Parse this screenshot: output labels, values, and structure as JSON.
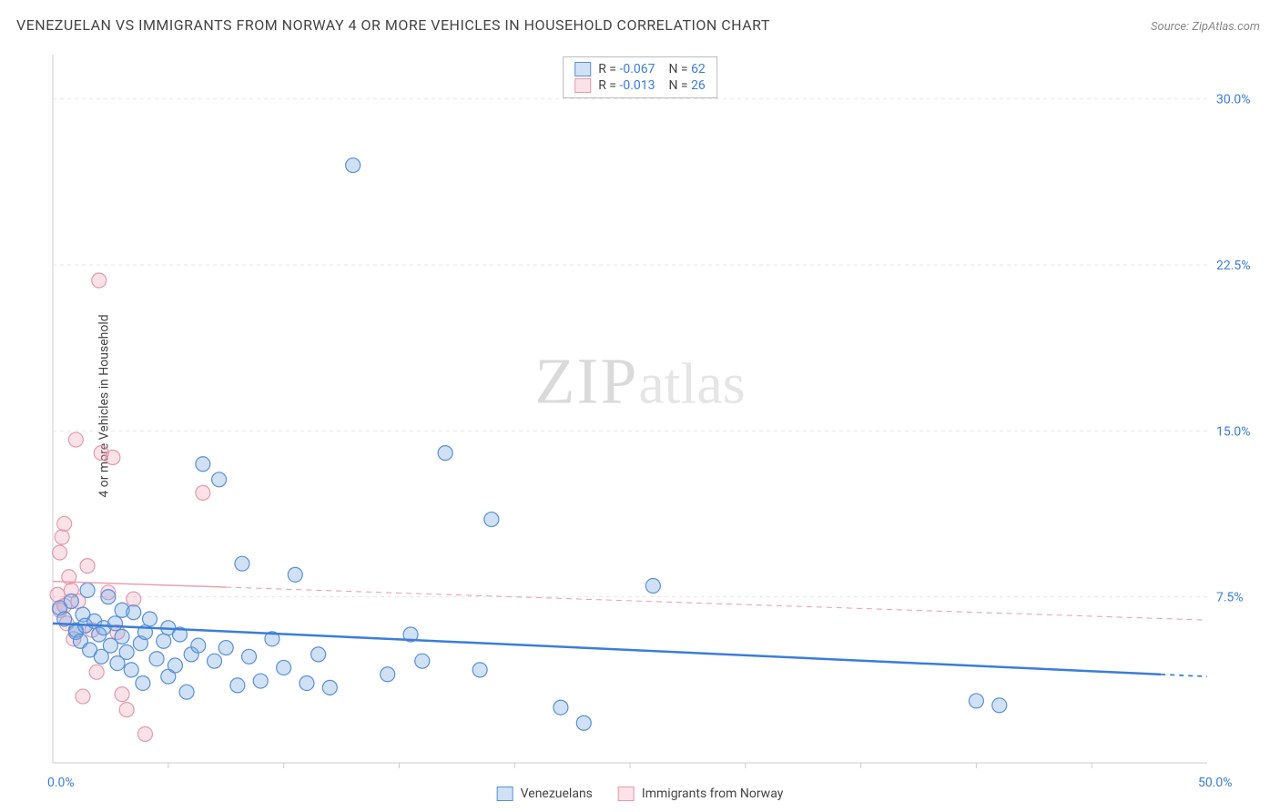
{
  "title": "VENEZUELAN VS IMMIGRANTS FROM NORWAY 4 OR MORE VEHICLES IN HOUSEHOLD CORRELATION CHART",
  "source": "Source: ZipAtlas.com",
  "ylabel": "4 or more Vehicles in Household",
  "watermark": {
    "a": "ZIP",
    "b": "atlas"
  },
  "chart": {
    "type": "scatter",
    "xlim": [
      0,
      50
    ],
    "ylim": [
      0,
      32
    ],
    "x_axis_min_label": "0.0%",
    "x_axis_max_label": "50.0%",
    "y_ticks": [
      7.5,
      15.0,
      22.5,
      30.0
    ],
    "y_tick_labels": [
      "7.5%",
      "15.0%",
      "22.5%",
      "30.0%"
    ],
    "x_ticks": [
      5,
      10,
      15,
      20,
      25,
      30,
      35,
      40,
      45
    ],
    "background": "#ffffff",
    "grid_color": "#e6e6e6",
    "axis_color": "#cccccc",
    "tick_label_color": "#3b7dd8",
    "series": {
      "venezuelans": {
        "label": "Venezuelans",
        "fill": "rgba(120,170,230,0.35)",
        "stroke": "#5a8fd6",
        "marker_radius": 8,
        "trend": {
          "slope": -0.048,
          "intercept": 6.3,
          "solid_until_x": 48,
          "color": "#3b7dd8",
          "width": 2.5
        },
        "stats": {
          "R": "-0.067",
          "N": "62"
        },
        "points": [
          [
            0.3,
            7.0
          ],
          [
            0.5,
            6.5
          ],
          [
            0.8,
            7.3
          ],
          [
            1.0,
            6.0
          ],
          [
            1.0,
            5.9
          ],
          [
            1.2,
            5.5
          ],
          [
            1.3,
            6.7
          ],
          [
            1.4,
            6.2
          ],
          [
            1.5,
            7.8
          ],
          [
            1.6,
            5.1
          ],
          [
            1.8,
            6.4
          ],
          [
            2.0,
            5.8
          ],
          [
            2.1,
            4.8
          ],
          [
            2.2,
            6.1
          ],
          [
            2.4,
            7.5
          ],
          [
            2.5,
            5.3
          ],
          [
            2.7,
            6.3
          ],
          [
            2.8,
            4.5
          ],
          [
            3.0,
            5.7
          ],
          [
            3.0,
            6.9
          ],
          [
            3.2,
            5.0
          ],
          [
            3.4,
            4.2
          ],
          [
            3.5,
            6.8
          ],
          [
            3.8,
            5.4
          ],
          [
            3.9,
            3.6
          ],
          [
            4.0,
            5.9
          ],
          [
            4.2,
            6.5
          ],
          [
            4.5,
            4.7
          ],
          [
            4.8,
            5.5
          ],
          [
            5.0,
            3.9
          ],
          [
            5.0,
            6.1
          ],
          [
            5.3,
            4.4
          ],
          [
            5.5,
            5.8
          ],
          [
            5.8,
            3.2
          ],
          [
            6.0,
            4.9
          ],
          [
            6.3,
            5.3
          ],
          [
            6.5,
            13.5
          ],
          [
            7.0,
            4.6
          ],
          [
            7.2,
            12.8
          ],
          [
            7.5,
            5.2
          ],
          [
            8.0,
            3.5
          ],
          [
            8.2,
            9.0
          ],
          [
            8.5,
            4.8
          ],
          [
            9.0,
            3.7
          ],
          [
            9.5,
            5.6
          ],
          [
            10.0,
            4.3
          ],
          [
            10.5,
            8.5
          ],
          [
            11.0,
            3.6
          ],
          [
            11.5,
            4.9
          ],
          [
            12.0,
            3.4
          ],
          [
            13.0,
            27.0
          ],
          [
            14.5,
            4.0
          ],
          [
            15.5,
            5.8
          ],
          [
            16.0,
            4.6
          ],
          [
            17.0,
            14.0
          ],
          [
            18.5,
            4.2
          ],
          [
            19.0,
            11.0
          ],
          [
            22.0,
            2.5
          ],
          [
            23.0,
            1.8
          ],
          [
            40.0,
            2.8
          ],
          [
            41.0,
            2.6
          ],
          [
            26.0,
            8.0
          ]
        ]
      },
      "norway": {
        "label": "Immigrants from Norway",
        "fill": "rgba(240,160,180,0.30)",
        "stroke": "#e49aaf",
        "marker_radius": 8,
        "trend": {
          "slope": -0.035,
          "intercept": 8.2,
          "solid_until_x": 7.5,
          "dash": "6 5",
          "color": "#e8a0b0",
          "width": 1.5
        },
        "stats": {
          "R": "-0.013",
          "N": "26"
        },
        "points": [
          [
            0.2,
            7.6
          ],
          [
            0.3,
            6.9
          ],
          [
            0.3,
            9.5
          ],
          [
            0.4,
            10.2
          ],
          [
            0.5,
            10.8
          ],
          [
            0.5,
            7.1
          ],
          [
            0.6,
            6.3
          ],
          [
            0.7,
            8.4
          ],
          [
            0.8,
            7.8
          ],
          [
            0.9,
            5.6
          ],
          [
            1.0,
            14.6
          ],
          [
            1.1,
            7.3
          ],
          [
            1.3,
            3.0
          ],
          [
            1.5,
            8.9
          ],
          [
            1.7,
            6.0
          ],
          [
            1.9,
            4.1
          ],
          [
            2.0,
            21.8
          ],
          [
            2.1,
            14.0
          ],
          [
            2.4,
            7.7
          ],
          [
            2.6,
            13.8
          ],
          [
            2.8,
            5.9
          ],
          [
            3.0,
            3.1
          ],
          [
            3.2,
            2.4
          ],
          [
            3.5,
            7.4
          ],
          [
            4.0,
            1.3
          ],
          [
            6.5,
            12.2
          ]
        ]
      }
    },
    "stats_box": {
      "R_label": "R =",
      "N_label": "N ="
    }
  }
}
